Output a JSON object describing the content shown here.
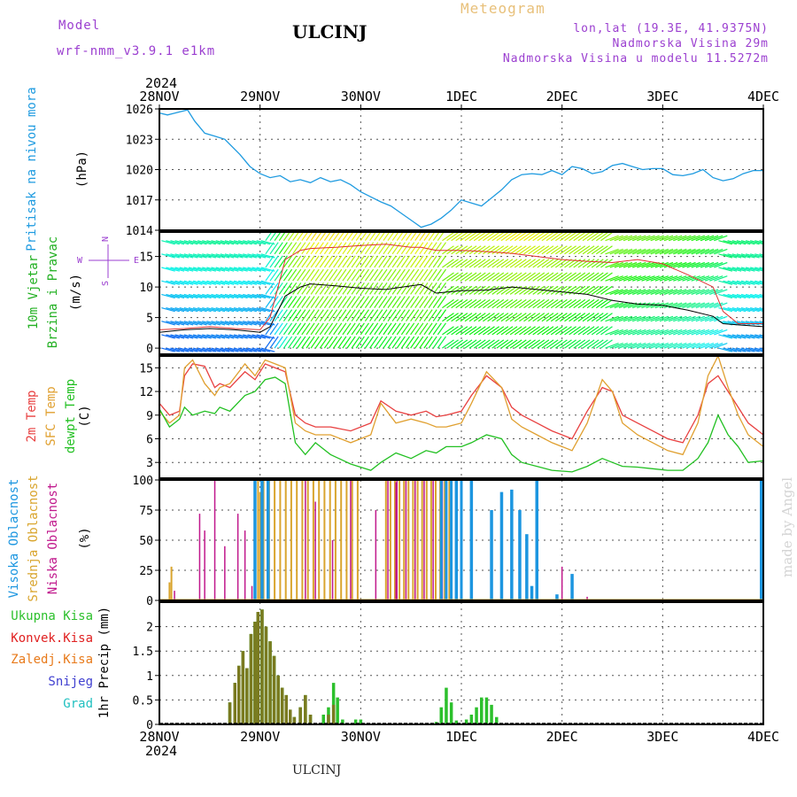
{
  "header": {
    "model_label": "Model",
    "model_value": "wrf-nmm_v3.9.1 e1km",
    "station": "ULCINJ",
    "title": "Meteogram",
    "lonlat": "lon,lat (19.3E, 41.9375N)",
    "altitude": "Nadmorska Visina 29m",
    "model_altitude": "Nadmorska Visina u modelu 11.5272m",
    "year_top": "2024",
    "year_bottom": "2024",
    "footer_station": "ULCINJ",
    "watermark": "made by Angel"
  },
  "colors": {
    "purple": "#9b3fd0",
    "gold": "#e8c07a",
    "pressure": "#1f9be0",
    "t2m": "#e84040",
    "tsfc": "#e0a030",
    "dew": "#22c022",
    "high_cloud": "#1c96e0",
    "mid_cloud": "#d9a52e",
    "low_cloud": "#c0188c",
    "total_precip": "#2cc02c",
    "convective": "#e02020",
    "frozen": "#e87a1a",
    "snow": "#4040d0",
    "hail": "#20c0c0"
  },
  "chart_data": [
    {
      "type": "line",
      "id": "pressure",
      "xlabels": [
        "28NOV",
        "29NOV",
        "30NOV",
        "1DEC",
        "2DEC",
        "3DEC",
        "4DEC"
      ],
      "ylabel": "(hPa)",
      "side_label": "Pritisak na nivou mora",
      "ylim": [
        1014,
        1026
      ],
      "yticks": [
        1014,
        1017,
        1020,
        1023,
        1026
      ],
      "grid": true,
      "x_days": [
        0,
        0.08,
        0.2,
        0.28,
        0.35,
        0.45,
        0.55,
        0.65,
        0.8,
        0.9,
        1.0,
        1.1,
        1.2,
        1.3,
        1.4,
        1.5,
        1.6,
        1.7,
        1.8,
        1.9,
        2.0,
        2.1,
        2.2,
        2.3,
        2.4,
        2.5,
        2.6,
        2.7,
        2.8,
        2.9,
        3.0,
        3.1,
        3.2,
        3.3,
        3.4,
        3.5,
        3.6,
        3.7,
        3.8,
        3.9,
        4.0,
        4.1,
        4.2,
        4.3,
        4.4,
        4.5,
        4.6,
        4.7,
        4.8,
        4.9,
        5.0,
        5.1,
        5.2,
        5.3,
        5.4,
        5.5,
        5.6,
        5.7,
        5.8,
        5.9,
        6.0
      ],
      "values": [
        1025.6,
        1025.4,
        1025.7,
        1025.9,
        1024.8,
        1023.6,
        1023.3,
        1023.0,
        1021.5,
        1020.3,
        1019.6,
        1019.2,
        1019.4,
        1018.8,
        1019.0,
        1018.7,
        1019.2,
        1018.8,
        1019.0,
        1018.5,
        1017.8,
        1017.3,
        1016.8,
        1016.4,
        1015.7,
        1015.0,
        1014.3,
        1014.6,
        1015.2,
        1016.0,
        1017.0,
        1016.7,
        1016.4,
        1017.2,
        1018.0,
        1019.0,
        1019.5,
        1019.6,
        1019.5,
        1019.9,
        1019.5,
        1020.3,
        1020.1,
        1019.6,
        1019.8,
        1020.4,
        1020.6,
        1020.3,
        1020.0,
        1020.1,
        1020.1,
        1019.5,
        1019.4,
        1019.6,
        1020.0,
        1019.2,
        1018.9,
        1019.1,
        1019.6,
        1019.9,
        1019.9
      ]
    },
    {
      "type": "wind",
      "id": "wind",
      "ylabel": "(m/s)",
      "side_label_1": "10m Vjetar",
      "side_label_2": "Brzina i Pravac",
      "compass": [
        "N",
        "S",
        "W",
        "E"
      ],
      "ylim": [
        -1,
        19
      ],
      "yticks": [
        0,
        5,
        10,
        15
      ],
      "grid": true,
      "x_days": [
        0,
        0.25,
        0.5,
        0.75,
        1.0,
        1.1,
        1.25,
        1.4,
        1.5,
        1.75,
        2.0,
        2.25,
        2.5,
        2.6,
        2.75,
        3.0,
        3.25,
        3.5,
        3.75,
        4.0,
        4.25,
        4.5,
        4.75,
        5.0,
        5.25,
        5.5,
        5.6,
        5.75,
        6.0
      ],
      "speed": [
        2.6,
        3.0,
        3.2,
        3.0,
        2.6,
        3.5,
        8.5,
        10.0,
        10.5,
        10.2,
        9.8,
        9.6,
        10.2,
        10.4,
        9.0,
        9.4,
        9.5,
        10.0,
        9.6,
        9.2,
        8.8,
        7.8,
        7.2,
        7.0,
        6.2,
        5.2,
        4.0,
        3.8,
        3.5
      ],
      "gust": [
        3.0,
        3.2,
        3.5,
        3.2,
        3.0,
        5.0,
        14.5,
        16.0,
        16.3,
        16.5,
        16.8,
        17.0,
        16.5,
        16.5,
        16.0,
        16.0,
        15.8,
        15.5,
        15.0,
        14.5,
        14.2,
        14.0,
        14.5,
        13.8,
        12.0,
        10.0,
        6.0,
        4.0,
        4.0
      ]
    },
    {
      "type": "line",
      "id": "temperature",
      "ylabel": "(C)",
      "side_labels": [
        "2m Temp",
        "SFC Temp",
        "dewpt Temp"
      ],
      "ylim": [
        1,
        16.5
      ],
      "yticks": [
        3,
        6,
        9,
        12,
        15
      ],
      "grid": true,
      "x_days": [
        0,
        0.1,
        0.2,
        0.25,
        0.33,
        0.45,
        0.55,
        0.6,
        0.7,
        0.85,
        0.95,
        1.05,
        1.15,
        1.25,
        1.35,
        1.45,
        1.55,
        1.7,
        1.9,
        2.1,
        2.2,
        2.35,
        2.5,
        2.65,
        2.75,
        2.85,
        3.0,
        3.1,
        3.25,
        3.4,
        3.5,
        3.6,
        3.75,
        3.9,
        4.1,
        4.25,
        4.4,
        4.5,
        4.6,
        4.75,
        4.9,
        5.05,
        5.2,
        5.35,
        5.45,
        5.55,
        5.65,
        5.75,
        5.85,
        6.0
      ],
      "series": [
        {
          "name": "2m Temp",
          "key": "t2m",
          "values": [
            10.5,
            9.0,
            9.5,
            14.0,
            15.5,
            15.2,
            12.5,
            13.0,
            12.5,
            14.5,
            13.5,
            15.5,
            15.0,
            14.5,
            9.0,
            8.0,
            7.5,
            7.5,
            7.0,
            8.0,
            10.8,
            9.5,
            9.0,
            9.5,
            8.8,
            9.0,
            9.5,
            11.5,
            14.0,
            12.5,
            10.0,
            9.0,
            8.0,
            7.0,
            6.0,
            9.5,
            12.5,
            12.0,
            9.0,
            8.0,
            7.0,
            6.0,
            5.5,
            9.0,
            13.0,
            14.0,
            12.0,
            10.0,
            8.0,
            6.5
          ]
        },
        {
          "name": "SFC Temp",
          "key": "tsfc",
          "values": [
            9.5,
            8.0,
            9.0,
            15.0,
            16.0,
            13.0,
            11.5,
            12.5,
            13.0,
            15.5,
            14.0,
            16.0,
            15.5,
            15.0,
            8.0,
            7.0,
            6.5,
            6.5,
            5.5,
            6.5,
            10.5,
            8.0,
            8.5,
            8.0,
            7.5,
            7.5,
            8.0,
            10.5,
            14.5,
            12.5,
            8.5,
            7.5,
            6.5,
            5.5,
            4.5,
            8.0,
            13.5,
            12.0,
            8.0,
            6.5,
            5.5,
            4.5,
            4.0,
            8.0,
            14.0,
            16.5,
            12.5,
            9.0,
            6.5,
            5.0
          ]
        },
        {
          "name": "dewpt Temp",
          "key": "dew",
          "values": [
            9.8,
            7.5,
            8.5,
            10.0,
            9.0,
            9.5,
            9.2,
            10.0,
            9.5,
            11.5,
            12.0,
            13.5,
            13.8,
            13.0,
            5.5,
            4.0,
            5.5,
            4.0,
            2.8,
            2.0,
            3.0,
            4.2,
            3.5,
            4.5,
            4.2,
            5.0,
            5.0,
            5.5,
            6.5,
            6.0,
            4.0,
            3.0,
            2.5,
            2.0,
            1.8,
            2.5,
            3.5,
            3.0,
            2.5,
            2.4,
            2.2,
            2.0,
            2.0,
            3.5,
            5.5,
            9.0,
            6.5,
            5.0,
            3.0,
            3.2
          ]
        }
      ]
    },
    {
      "type": "bar",
      "id": "clouds",
      "ylabel": "(%)",
      "side_labels": [
        "Visoka Oblacnost",
        "Srednja Oblacnost",
        "Niska Oblacnost"
      ],
      "ylim": [
        0,
        100
      ],
      "yticks": [
        0,
        25,
        50,
        75,
        100
      ],
      "grid": true,
      "low": [
        [
          0.15,
          8
        ],
        [
          0.4,
          72
        ],
        [
          0.45,
          58
        ],
        [
          0.55,
          100
        ],
        [
          0.65,
          45
        ],
        [
          0.78,
          72
        ],
        [
          0.85,
          58
        ],
        [
          0.92,
          12
        ],
        [
          1.45,
          100
        ],
        [
          1.55,
          82
        ],
        [
          1.72,
          50
        ],
        [
          1.9,
          100
        ],
        [
          2.15,
          75
        ],
        [
          2.35,
          98
        ],
        [
          4.0,
          28
        ],
        [
          4.25,
          3
        ]
      ],
      "mid": [
        [
          0.1,
          15
        ],
        [
          0.12,
          28
        ],
        [
          0.95,
          60
        ],
        [
          1.0,
          90
        ]
      ],
      "mid_dense": [
        0.98,
        1.98
      ],
      "mid_dense_2": [
        2.25,
        2.92
      ],
      "high": [
        [
          0.95,
          100
        ],
        [
          1.02,
          100
        ],
        [
          1.08,
          100
        ],
        [
          2.95,
          100
        ],
        [
          3.1,
          100
        ],
        [
          3.3,
          75
        ],
        [
          3.4,
          90
        ],
        [
          3.5,
          92
        ],
        [
          3.58,
          75
        ],
        [
          3.65,
          55
        ],
        [
          3.7,
          12
        ],
        [
          3.75,
          100
        ],
        [
          3.95,
          5
        ],
        [
          4.1,
          22
        ],
        [
          5.98,
          100
        ]
      ]
    },
    {
      "type": "bar",
      "id": "precip",
      "ylabel": "1hr Precip (mm)",
      "side_labels": [
        "Ukupna Kisa",
        "Konvek.Kisa",
        "Zaledj.Kisa",
        "Snijeg",
        "Grad"
      ],
      "ylim": [
        0,
        2.5
      ],
      "yticks": [
        0,
        0.5,
        1,
        1.5,
        2
      ],
      "grid": true,
      "total": [
        [
          0.7,
          0.45
        ],
        [
          0.75,
          0.85
        ],
        [
          0.79,
          1.2
        ],
        [
          0.83,
          1.5
        ],
        [
          0.87,
          1.15
        ],
        [
          0.91,
          1.85
        ],
        [
          0.95,
          2.1
        ],
        [
          0.98,
          2.3
        ],
        [
          1.02,
          2.35
        ],
        [
          1.06,
          2.0
        ],
        [
          1.1,
          1.7
        ],
        [
          1.14,
          1.4
        ],
        [
          1.18,
          1.0
        ],
        [
          1.22,
          0.75
        ],
        [
          1.26,
          0.6
        ],
        [
          1.3,
          0.3
        ],
        [
          1.34,
          0.15
        ],
        [
          1.4,
          0.35
        ],
        [
          1.45,
          0.6
        ],
        [
          1.5,
          0.2
        ],
        [
          1.63,
          0.2
        ],
        [
          1.68,
          0.35
        ],
        [
          1.73,
          0.85
        ],
        [
          1.77,
          0.55
        ],
        [
          1.82,
          0.1
        ],
        [
          1.95,
          0.1
        ],
        [
          2.0,
          0.1
        ],
        [
          2.75,
          0.05
        ],
        [
          2.8,
          0.35
        ],
        [
          2.85,
          0.75
        ],
        [
          2.9,
          0.45
        ],
        [
          2.95,
          0.08
        ],
        [
          3.05,
          0.1
        ],
        [
          3.1,
          0.2
        ],
        [
          3.15,
          0.35
        ],
        [
          3.2,
          0.55
        ],
        [
          3.25,
          0.55
        ],
        [
          3.3,
          0.4
        ],
        [
          3.35,
          0.15
        ]
      ],
      "convective": [
        [
          0.7,
          0.45
        ],
        [
          0.75,
          0.85
        ],
        [
          0.79,
          1.2
        ],
        [
          0.83,
          1.5
        ],
        [
          0.87,
          1.15
        ],
        [
          0.91,
          1.85
        ],
        [
          0.95,
          2.1
        ],
        [
          0.98,
          2.3
        ],
        [
          1.02,
          2.35
        ],
        [
          1.06,
          2.0
        ],
        [
          1.1,
          1.7
        ],
        [
          1.14,
          1.4
        ],
        [
          1.18,
          1.0
        ],
        [
          1.22,
          0.75
        ],
        [
          1.26,
          0.6
        ],
        [
          1.3,
          0.3
        ],
        [
          1.34,
          0.15
        ],
        [
          1.4,
          0.35
        ],
        [
          1.45,
          0.6
        ],
        [
          1.5,
          0.2
        ],
        [
          1.68,
          0.2
        ],
        [
          1.73,
          0.4
        ]
      ]
    }
  ]
}
